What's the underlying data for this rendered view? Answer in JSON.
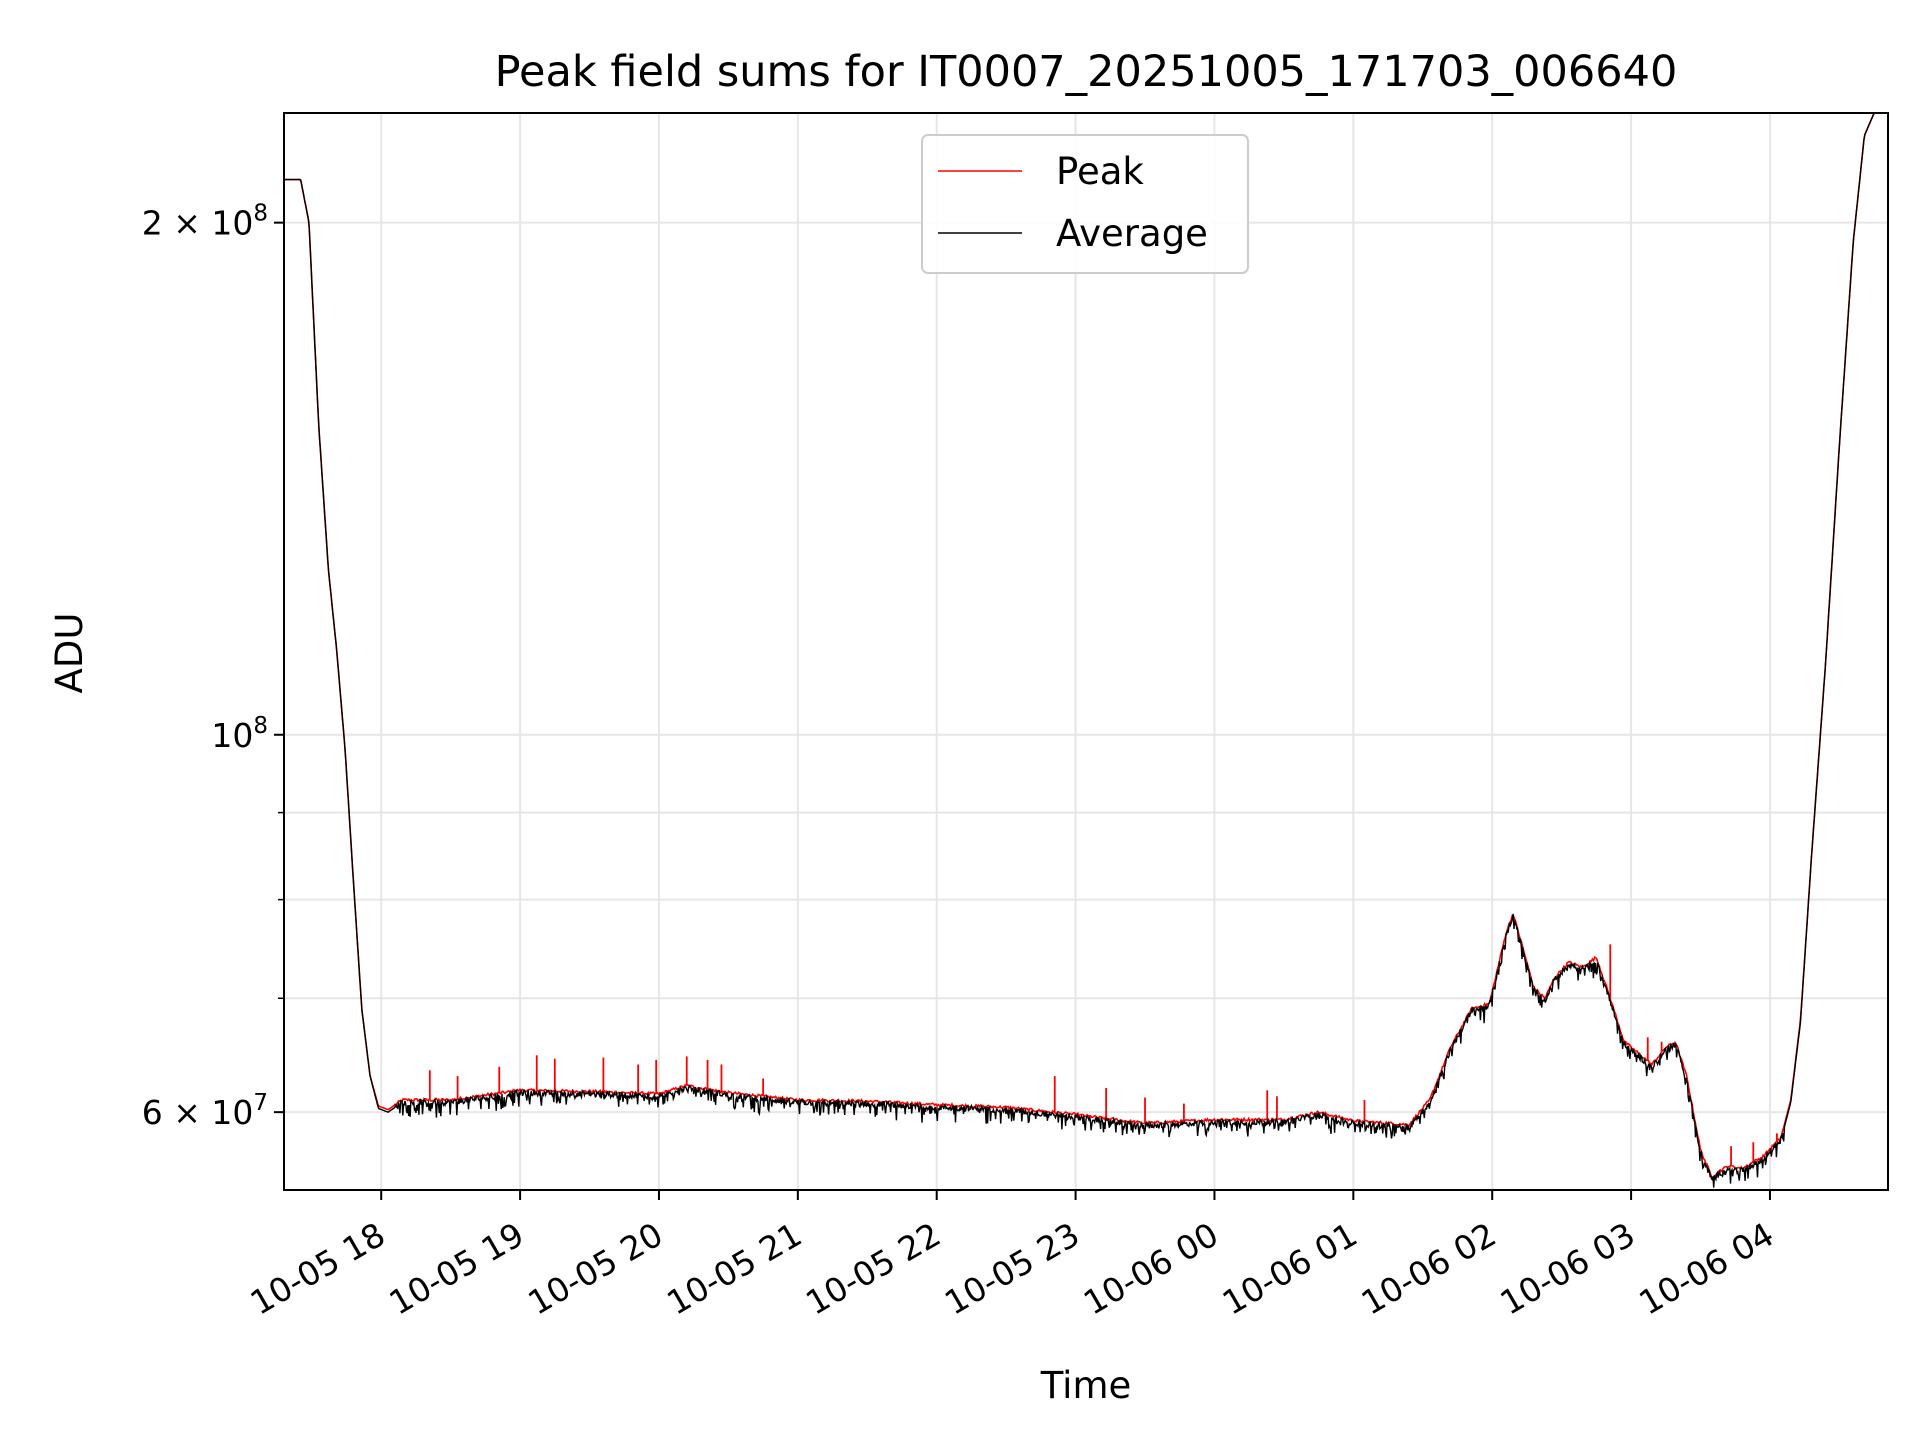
{
  "chart_data": {
    "type": "line",
    "title": "Peak field sums for IT0007_20251005_171703_006640",
    "xlabel": "Time",
    "ylabel": "ADU",
    "yscale": "log",
    "ylim": [
      54000000,
      232000000
    ],
    "xlim_hours": [
      -0.7,
      10.85
    ],
    "grid": true,
    "legend_position": "top-center",
    "x_ticks": [
      {
        "h": 0,
        "label": "10-05 18"
      },
      {
        "h": 1,
        "label": "10-05 19"
      },
      {
        "h": 2,
        "label": "10-05 20"
      },
      {
        "h": 3,
        "label": "10-05 21"
      },
      {
        "h": 4,
        "label": "10-05 22"
      },
      {
        "h": 5,
        "label": "10-05 23"
      },
      {
        "h": 6,
        "label": "10-06 00"
      },
      {
        "h": 7,
        "label": "10-06 01"
      },
      {
        "h": 8,
        "label": "10-06 02"
      },
      {
        "h": 9,
        "label": "10-06 03"
      },
      {
        "h": 10,
        "label": "10-06 04"
      }
    ],
    "y_major_ticks": [
      {
        "value": 60000000,
        "base": "6 × 10",
        "exp": "7"
      },
      {
        "value": 100000000,
        "base": "10",
        "exp": "8"
      },
      {
        "value": 200000000,
        "base": "2 × 10",
        "exp": "8"
      }
    ],
    "y_minor_ticks": [
      70000000,
      80000000,
      90000000
    ],
    "series": [
      {
        "name": "Peak",
        "color": "#ff0000",
        "points": [
          [
            -0.7,
            212000000
          ],
          [
            -0.58,
            212000000
          ],
          [
            -0.52,
            200000000
          ],
          [
            -0.45,
            152000000
          ],
          [
            -0.38,
            125000000
          ],
          [
            -0.32,
            112000000
          ],
          [
            -0.26,
            98000000
          ],
          [
            -0.2,
            82000000
          ],
          [
            -0.14,
            69000000
          ],
          [
            -0.08,
            63000000
          ],
          [
            -0.02,
            60500000
          ],
          [
            0.05,
            60200000
          ],
          [
            0.15,
            61000000
          ],
          [
            0.5,
            61000000
          ],
          [
            1.0,
            61800000
          ],
          [
            1.5,
            61700000
          ],
          [
            2.0,
            61500000
          ],
          [
            2.2,
            62200000
          ],
          [
            2.5,
            61600000
          ],
          [
            3.0,
            61000000
          ],
          [
            3.5,
            60900000
          ],
          [
            4.0,
            60600000
          ],
          [
            4.5,
            60400000
          ],
          [
            5.0,
            59800000
          ],
          [
            5.5,
            59100000
          ],
          [
            6.0,
            59400000
          ],
          [
            6.5,
            59400000
          ],
          [
            6.75,
            60000000
          ],
          [
            7.0,
            59300000
          ],
          [
            7.4,
            59000000
          ],
          [
            7.55,
            61000000
          ],
          [
            7.7,
            65500000
          ],
          [
            7.85,
            69000000
          ],
          [
            7.98,
            69500000
          ],
          [
            8.1,
            76500000
          ],
          [
            8.15,
            78500000
          ],
          [
            8.2,
            76000000
          ],
          [
            8.3,
            71000000
          ],
          [
            8.38,
            70000000
          ],
          [
            8.45,
            72000000
          ],
          [
            8.55,
            73500000
          ],
          [
            8.65,
            73000000
          ],
          [
            8.75,
            74000000
          ],
          [
            8.85,
            70000000
          ],
          [
            8.95,
            66000000
          ],
          [
            9.05,
            65000000
          ],
          [
            9.15,
            64000000
          ],
          [
            9.25,
            65500000
          ],
          [
            9.32,
            66000000
          ],
          [
            9.4,
            63000000
          ],
          [
            9.5,
            57000000
          ],
          [
            9.58,
            55000000
          ],
          [
            9.7,
            55800000
          ],
          [
            9.8,
            55600000
          ],
          [
            9.95,
            56500000
          ],
          [
            10.08,
            58000000
          ],
          [
            10.15,
            61000000
          ],
          [
            10.22,
            68000000
          ],
          [
            10.3,
            85000000
          ],
          [
            10.4,
            110000000
          ],
          [
            10.5,
            148000000
          ],
          [
            10.6,
            195000000
          ],
          [
            10.68,
            225000000
          ],
          [
            10.75,
            232000000
          ],
          [
            10.85,
            232000000
          ]
        ]
      },
      {
        "name": "Average",
        "color": "#000000",
        "points": [
          [
            -0.7,
            212000000
          ],
          [
            -0.58,
            212000000
          ],
          [
            -0.52,
            200000000
          ],
          [
            -0.45,
            152000000
          ],
          [
            -0.38,
            125000000
          ],
          [
            -0.32,
            112000000
          ],
          [
            -0.26,
            98000000
          ],
          [
            -0.2,
            82000000
          ],
          [
            -0.14,
            69000000
          ],
          [
            -0.08,
            63000000
          ],
          [
            -0.02,
            60300000
          ],
          [
            0.05,
            60000000
          ],
          [
            0.15,
            60800000
          ],
          [
            0.5,
            60800000
          ],
          [
            1.0,
            61600000
          ],
          [
            1.5,
            61500000
          ],
          [
            2.0,
            61300000
          ],
          [
            2.2,
            62000000
          ],
          [
            2.5,
            61400000
          ],
          [
            3.0,
            60800000
          ],
          [
            3.5,
            60700000
          ],
          [
            4.0,
            60400000
          ],
          [
            4.5,
            60200000
          ],
          [
            5.0,
            59600000
          ],
          [
            5.5,
            58900000
          ],
          [
            6.0,
            59200000
          ],
          [
            6.5,
            59200000
          ],
          [
            6.75,
            59800000
          ],
          [
            7.0,
            59100000
          ],
          [
            7.4,
            58800000
          ],
          [
            7.55,
            60800000
          ],
          [
            7.7,
            65300000
          ],
          [
            7.85,
            68800000
          ],
          [
            7.98,
            69300000
          ],
          [
            8.1,
            76300000
          ],
          [
            8.15,
            78300000
          ],
          [
            8.2,
            75800000
          ],
          [
            8.3,
            70800000
          ],
          [
            8.38,
            69800000
          ],
          [
            8.45,
            71800000
          ],
          [
            8.55,
            73300000
          ],
          [
            8.65,
            72800000
          ],
          [
            8.75,
            73600000
          ],
          [
            8.85,
            69800000
          ],
          [
            8.95,
            65800000
          ],
          [
            9.05,
            64800000
          ],
          [
            9.15,
            63700000
          ],
          [
            9.25,
            65300000
          ],
          [
            9.32,
            65800000
          ],
          [
            9.4,
            62800000
          ],
          [
            9.5,
            56800000
          ],
          [
            9.58,
            54800000
          ],
          [
            9.7,
            55600000
          ],
          [
            9.8,
            55400000
          ],
          [
            9.95,
            56300000
          ],
          [
            10.08,
            57800000
          ],
          [
            10.15,
            60800000
          ],
          [
            10.22,
            67800000
          ],
          [
            10.3,
            85000000
          ],
          [
            10.4,
            110000000
          ],
          [
            10.5,
            148000000
          ],
          [
            10.6,
            195000000
          ],
          [
            10.68,
            225000000
          ],
          [
            10.75,
            232000000
          ],
          [
            10.85,
            232000000
          ]
        ]
      }
    ],
    "peak_spikes": [
      {
        "h": 0.35,
        "value": 63500000
      },
      {
        "h": 0.55,
        "value": 63000000
      },
      {
        "h": 0.85,
        "value": 63800000
      },
      {
        "h": 1.12,
        "value": 64800000
      },
      {
        "h": 1.25,
        "value": 64500000
      },
      {
        "h": 1.6,
        "value": 64600000
      },
      {
        "h": 1.85,
        "value": 64000000
      },
      {
        "h": 1.98,
        "value": 64400000
      },
      {
        "h": 2.2,
        "value": 64700000
      },
      {
        "h": 2.35,
        "value": 64400000
      },
      {
        "h": 2.45,
        "value": 64000000
      },
      {
        "h": 2.75,
        "value": 62800000
      },
      {
        "h": 4.85,
        "value": 63000000
      },
      {
        "h": 5.22,
        "value": 62000000
      },
      {
        "h": 5.5,
        "value": 61200000
      },
      {
        "h": 5.78,
        "value": 60700000
      },
      {
        "h": 6.38,
        "value": 61800000
      },
      {
        "h": 6.45,
        "value": 61300000
      },
      {
        "h": 7.08,
        "value": 61000000
      },
      {
        "h": 8.85,
        "value": 75300000
      },
      {
        "h": 9.12,
        "value": 66400000
      },
      {
        "h": 9.22,
        "value": 66000000
      },
      {
        "h": 9.72,
        "value": 57300000
      },
      {
        "h": 9.88,
        "value": 57600000
      },
      {
        "h": 10.05,
        "value": 58300000
      }
    ]
  }
}
